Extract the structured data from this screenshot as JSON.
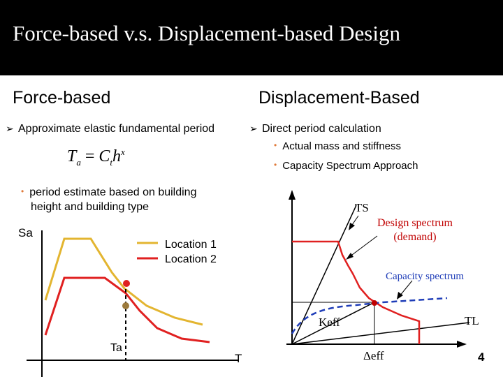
{
  "title": "Force-based v.s. Displacement-based Design",
  "left": {
    "heading": "Force-based",
    "bullet": "Approximate elastic fundamental period",
    "formula": {
      "lhs": "T",
      "lhs_sub": "a",
      "eq": " = ",
      "coef": "C",
      "coef_sub": "t",
      "var": "h",
      "exp": "x"
    },
    "note_line1": "period estimate based on building",
    "note_line2": "height and building type",
    "chart": {
      "y_axis_label": "Sa",
      "x_axis_label": "T",
      "period_label": "Ta",
      "legend": [
        {
          "name": "Location 1",
          "color": "#E3B530"
        },
        {
          "name": "Location 2",
          "color": "#E02020"
        }
      ]
    }
  },
  "right": {
    "heading": "Displacement-Based",
    "bullet": "Direct period calculation",
    "sub_items": [
      "Actual mass and stiffness",
      "Capacity Spectrum Approach"
    ],
    "chart": {
      "ts_label": "TS",
      "design_spectrum_line1": "Design spectrum",
      "design_spectrum_line2": "(demand)",
      "capacity_label": "Capacity spectrum",
      "keff_label": "Keff",
      "tl_label": "TL",
      "delta_label": "Δeff"
    }
  },
  "page_number": "4",
  "colors": {
    "red": "#E02020",
    "gold": "#E3B530",
    "blue": "#1F3DB8",
    "brown": "#9C7A3C"
  }
}
